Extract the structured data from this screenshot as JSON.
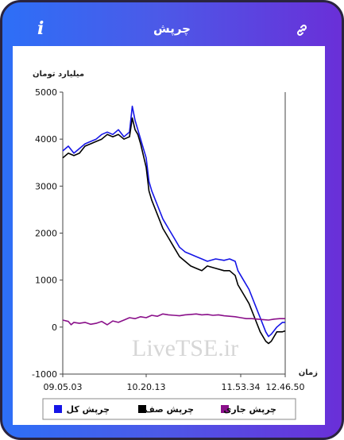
{
  "header": {
    "title": "چرپش"
  },
  "icons": {
    "info": "info-icon",
    "link": "link-icon"
  },
  "chart_data": {
    "type": "line",
    "ylabel": "میلیارد تومان",
    "xlabel": "زمان",
    "ylim": [
      -1000,
      5000
    ],
    "yticks": [
      "5000",
      "4000",
      "3000",
      "2000",
      "1000",
      "0",
      "-1000"
    ],
    "xticks": [
      "09.05.03",
      "10.20.13",
      "11.53.34",
      "12.46.50"
    ],
    "watermark": "LiveTSE.ir",
    "series": [
      {
        "name": "چرپش کل",
        "color": "#1515e6",
        "points": [
          [
            0,
            3750
          ],
          [
            2,
            3850
          ],
          [
            4,
            3700
          ],
          [
            6,
            3800
          ],
          [
            8,
            3900
          ],
          [
            10,
            3950
          ],
          [
            12,
            4000
          ],
          [
            14,
            4100
          ],
          [
            16,
            4150
          ],
          [
            18,
            4100
          ],
          [
            20,
            4200
          ],
          [
            22,
            4050
          ],
          [
            24,
            4150
          ],
          [
            25,
            4700
          ],
          [
            26,
            4400
          ],
          [
            27,
            4200
          ],
          [
            28,
            4000
          ],
          [
            30,
            3600
          ],
          [
            31,
            3100
          ],
          [
            32,
            2900
          ],
          [
            34,
            2600
          ],
          [
            36,
            2300
          ],
          [
            38,
            2100
          ],
          [
            40,
            1900
          ],
          [
            42,
            1700
          ],
          [
            44,
            1600
          ],
          [
            46,
            1550
          ],
          [
            48,
            1500
          ],
          [
            50,
            1450
          ],
          [
            52,
            1400
          ],
          [
            55,
            1450
          ],
          [
            58,
            1420
          ],
          [
            60,
            1450
          ],
          [
            62,
            1400
          ],
          [
            63,
            1200
          ],
          [
            65,
            1000
          ],
          [
            67,
            800
          ],
          [
            69,
            500
          ],
          [
            71,
            200
          ],
          [
            73,
            -100
          ],
          [
            74,
            -200
          ],
          [
            75,
            -150
          ],
          [
            77,
            0
          ],
          [
            79,
            100
          ],
          [
            80,
            100
          ]
        ]
      },
      {
        "name": "چرپش صف",
        "color": "#000000",
        "points": [
          [
            0,
            3600
          ],
          [
            2,
            3700
          ],
          [
            4,
            3650
          ],
          [
            6,
            3700
          ],
          [
            8,
            3850
          ],
          [
            10,
            3900
          ],
          [
            12,
            3950
          ],
          [
            14,
            4000
          ],
          [
            16,
            4100
          ],
          [
            18,
            4050
          ],
          [
            20,
            4100
          ],
          [
            22,
            4000
          ],
          [
            24,
            4050
          ],
          [
            25,
            4450
          ],
          [
            26,
            4200
          ],
          [
            27,
            4100
          ],
          [
            28,
            3900
          ],
          [
            30,
            3400
          ],
          [
            31,
            2900
          ],
          [
            32,
            2700
          ],
          [
            34,
            2400
          ],
          [
            36,
            2100
          ],
          [
            38,
            1900
          ],
          [
            40,
            1700
          ],
          [
            42,
            1500
          ],
          [
            44,
            1400
          ],
          [
            46,
            1300
          ],
          [
            48,
            1250
          ],
          [
            50,
            1200
          ],
          [
            52,
            1300
          ],
          [
            55,
            1250
          ],
          [
            58,
            1200
          ],
          [
            60,
            1200
          ],
          [
            62,
            1100
          ],
          [
            63,
            900
          ],
          [
            65,
            700
          ],
          [
            67,
            500
          ],
          [
            69,
            200
          ],
          [
            71,
            -100
          ],
          [
            73,
            -300
          ],
          [
            74,
            -350
          ],
          [
            75,
            -300
          ],
          [
            77,
            -100
          ],
          [
            79,
            -100
          ],
          [
            80,
            -80
          ]
        ]
      },
      {
        "name": "چرپش جاری",
        "color": "#8a108a",
        "points": [
          [
            0,
            150
          ],
          [
            2,
            120
          ],
          [
            3,
            50
          ],
          [
            4,
            100
          ],
          [
            6,
            80
          ],
          [
            8,
            100
          ],
          [
            10,
            60
          ],
          [
            12,
            80
          ],
          [
            14,
            120
          ],
          [
            16,
            50
          ],
          [
            18,
            130
          ],
          [
            20,
            100
          ],
          [
            22,
            150
          ],
          [
            24,
            200
          ],
          [
            26,
            180
          ],
          [
            28,
            220
          ],
          [
            30,
            200
          ],
          [
            32,
            250
          ],
          [
            34,
            230
          ],
          [
            36,
            280
          ],
          [
            38,
            260
          ],
          [
            40,
            250
          ],
          [
            42,
            240
          ],
          [
            44,
            260
          ],
          [
            46,
            270
          ],
          [
            48,
            280
          ],
          [
            50,
            260
          ],
          [
            52,
            270
          ],
          [
            54,
            250
          ],
          [
            56,
            260
          ],
          [
            58,
            240
          ],
          [
            60,
            230
          ],
          [
            62,
            220
          ],
          [
            64,
            200
          ],
          [
            66,
            180
          ],
          [
            68,
            180
          ],
          [
            70,
            170
          ],
          [
            72,
            160
          ],
          [
            74,
            150
          ],
          [
            76,
            170
          ],
          [
            78,
            180
          ],
          [
            80,
            180
          ]
        ]
      }
    ]
  }
}
